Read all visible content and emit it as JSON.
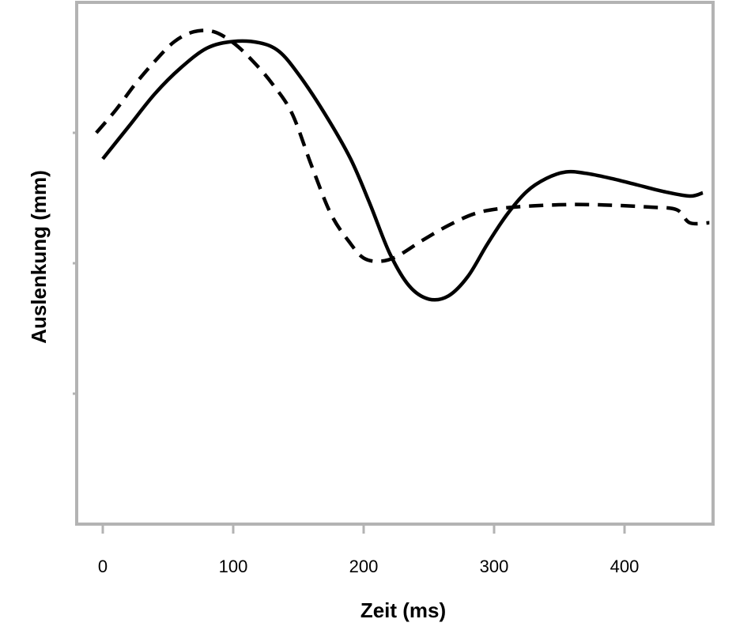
{
  "chart_data": {
    "type": "line",
    "xlabel": "Zeit (ms)",
    "ylabel": "Auslenkung (mm)",
    "xlim": [
      -5,
      465
    ],
    "ylim": [
      -4,
      4
    ],
    "x_ticks": [
      0,
      100,
      200,
      300,
      400
    ],
    "y_ticks_labeled": false,
    "grid": false,
    "legend": "none",
    "colors": {
      "frame": "#b3b3b3",
      "line": "#000000"
    },
    "series": [
      {
        "style": "solid",
        "points": [
          [
            0,
            1.6
          ],
          [
            20,
            2.1
          ],
          [
            40,
            2.6
          ],
          [
            60,
            3.0
          ],
          [
            80,
            3.3
          ],
          [
            100,
            3.4
          ],
          [
            120,
            3.38
          ],
          [
            135,
            3.25
          ],
          [
            150,
            2.9
          ],
          [
            170,
            2.3
          ],
          [
            190,
            1.6
          ],
          [
            205,
            0.9
          ],
          [
            220,
            0.15
          ],
          [
            235,
            -0.35
          ],
          [
            250,
            -0.55
          ],
          [
            265,
            -0.5
          ],
          [
            280,
            -0.2
          ],
          [
            295,
            0.3
          ],
          [
            310,
            0.75
          ],
          [
            325,
            1.1
          ],
          [
            340,
            1.3
          ],
          [
            355,
            1.4
          ],
          [
            370,
            1.38
          ],
          [
            390,
            1.3
          ],
          [
            410,
            1.2
          ],
          [
            430,
            1.1
          ],
          [
            450,
            1.03
          ],
          [
            460,
            1.08
          ]
        ]
      },
      {
        "style": "dashed",
        "points": [
          [
            -5,
            2.0
          ],
          [
            10,
            2.35
          ],
          [
            25,
            2.75
          ],
          [
            40,
            3.1
          ],
          [
            55,
            3.4
          ],
          [
            70,
            3.55
          ],
          [
            85,
            3.55
          ],
          [
            100,
            3.38
          ],
          [
            115,
            3.1
          ],
          [
            130,
            2.75
          ],
          [
            145,
            2.3
          ],
          [
            160,
            1.5
          ],
          [
            175,
            0.75
          ],
          [
            190,
            0.3
          ],
          [
            200,
            0.08
          ],
          [
            212,
            0.03
          ],
          [
            225,
            0.1
          ],
          [
            245,
            0.35
          ],
          [
            265,
            0.58
          ],
          [
            285,
            0.76
          ],
          [
            305,
            0.84
          ],
          [
            330,
            0.88
          ],
          [
            360,
            0.9
          ],
          [
            390,
            0.89
          ],
          [
            420,
            0.86
          ],
          [
            440,
            0.82
          ],
          [
            450,
            0.62
          ],
          [
            465,
            0.62
          ]
        ]
      }
    ]
  }
}
